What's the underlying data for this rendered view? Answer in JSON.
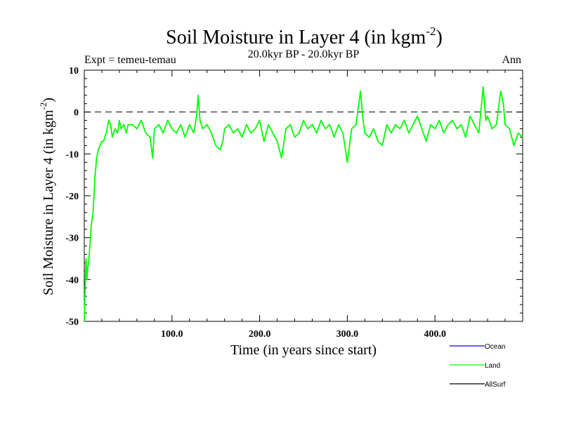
{
  "chart_data": {
    "type": "line",
    "title": "Soil Moisture in Layer 4 (in kgm",
    "title_sup": "-2",
    "title_close": ")",
    "subtitle": "20.0kyr BP - 20.0kyr BP",
    "expt_label": "Expt = temeu-temau",
    "season_label": "Ann",
    "xlabel": "Time (in years since start)",
    "ylabel": "Soil Moisture in Layer 4 (in kgm",
    "ylabel_sup": "-2",
    "ylabel_close": ")",
    "xlim": [
      0,
      500
    ],
    "ylim": [
      -50,
      10
    ],
    "xticks": [
      100,
      200,
      300,
      400
    ],
    "xtick_labels": [
      "100.0",
      "200.0",
      "300.0",
      "400.0"
    ],
    "yticks": [
      10,
      0,
      -10,
      -20,
      -30,
      -40,
      -50
    ],
    "ytick_labels": [
      "10",
      "0",
      "-10",
      "-20",
      "-30",
      "-40",
      "-50"
    ],
    "reference_line": {
      "y": 0,
      "style": "dashed"
    },
    "legend": [
      {
        "name": "Ocean",
        "color": "#0000ff"
      },
      {
        "name": "Land",
        "color": "#00ff00"
      },
      {
        "name": "AllSurf",
        "color": "#000000"
      }
    ],
    "series": [
      {
        "name": "Land",
        "color": "#00ff00",
        "x": [
          0,
          1,
          2,
          3,
          4,
          5,
          6,
          8,
          10,
          12,
          14,
          16,
          18,
          20,
          22,
          25,
          28,
          30,
          32,
          35,
          38,
          40,
          42,
          45,
          48,
          50,
          55,
          60,
          65,
          70,
          75,
          78,
          80,
          85,
          90,
          95,
          100,
          105,
          110,
          115,
          120,
          125,
          128,
          130,
          132,
          135,
          140,
          145,
          150,
          155,
          158,
          160,
          165,
          170,
          175,
          180,
          185,
          190,
          195,
          200,
          205,
          210,
          215,
          220,
          225,
          230,
          235,
          240,
          245,
          250,
          255,
          260,
          265,
          270,
          275,
          280,
          285,
          290,
          295,
          300,
          305,
          310,
          315,
          318,
          320,
          325,
          330,
          335,
          340,
          345,
          350,
          355,
          360,
          365,
          370,
          375,
          380,
          385,
          390,
          395,
          400,
          405,
          410,
          415,
          420,
          425,
          430,
          435,
          440,
          445,
          450,
          455,
          458,
          460,
          465,
          470,
          475,
          478,
          480,
          485,
          490,
          495,
          500
        ],
        "values": [
          -50,
          -42,
          -35,
          -40,
          -37,
          -36,
          -33,
          -27,
          -24,
          -16,
          -11,
          -9,
          -8,
          -7,
          -7,
          -5,
          -2,
          -3,
          -6,
          -4,
          -5,
          -2,
          -4,
          -3,
          -5,
          -3,
          -3,
          -4,
          -2,
          -5,
          -6,
          -11,
          -4,
          -3,
          -5,
          -2,
          -4,
          -5,
          -3,
          -6,
          -3,
          -5,
          -1,
          4,
          -2,
          -4,
          -3,
          -5,
          -8,
          -9,
          -7,
          -4,
          -3,
          -5,
          -4,
          -6,
          -3,
          -5,
          -4,
          -2,
          -7,
          -3,
          -5,
          -7,
          -11,
          -4,
          -3,
          -6,
          -5,
          -2,
          -4,
          -3,
          -5,
          -2,
          -4,
          -3,
          -6,
          -3,
          -5,
          -12,
          -4,
          -3,
          5,
          -2,
          -5,
          -6,
          -4,
          -7,
          -8,
          -3,
          -5,
          -3,
          -4,
          -2,
          -5,
          -3,
          -1,
          -4,
          -7,
          -3,
          -4,
          -2,
          -5,
          -3,
          -2,
          -4,
          -3,
          -6,
          -1,
          -3,
          -5,
          6,
          -2,
          -1,
          -4,
          -3,
          5,
          2,
          -3,
          -4,
          -8,
          -5,
          -6
        ]
      }
    ]
  }
}
